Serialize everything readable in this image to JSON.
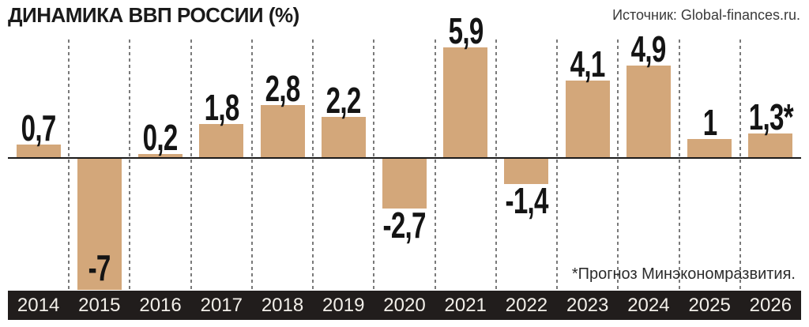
{
  "header": {
    "title": "ДИНАМИКА ВВП РОССИИ (%)",
    "source": "Источник: Global-finances.ru."
  },
  "footnote": "*Прогноз Минэкономразвития.",
  "colors": {
    "bar": "#d3a77a",
    "footer_bg": "#211d1c",
    "year_text": "#f2efe9",
    "zero_line": "#1a1a1a",
    "separator": "#7a7a7a"
  },
  "chart_data": {
    "type": "bar",
    "title": "ДИНАМИКА ВВП РОССИИ (%)",
    "source": "Источник: Global-finances.ru.",
    "footnote": "*Прогноз Минэкономразвития.",
    "categories": [
      "2014",
      "2015",
      "2016",
      "2017",
      "2018",
      "2019",
      "2020",
      "2021",
      "2022",
      "2023",
      "2024",
      "2025",
      "2026"
    ],
    "values": [
      0.7,
      -7,
      0.2,
      1.8,
      2.8,
      2.2,
      -2.7,
      5.9,
      -1.4,
      4.1,
      4.9,
      1,
      1.3
    ],
    "value_labels": [
      "0,7",
      "-7",
      "0,2",
      "1,8",
      "2,8",
      "2,2",
      "-2,7",
      "5,9",
      "-1,4",
      "4,1",
      "4,9",
      "1",
      "1,3*"
    ],
    "xlabel": "",
    "ylabel": "",
    "units": "%",
    "ylim": [
      -7.3,
      6.5
    ],
    "grid": "dashed vertical separators between year columns",
    "legend": "none",
    "label_inside_bar": [
      "2015"
    ],
    "forecast_categories": [
      "2026"
    ]
  }
}
